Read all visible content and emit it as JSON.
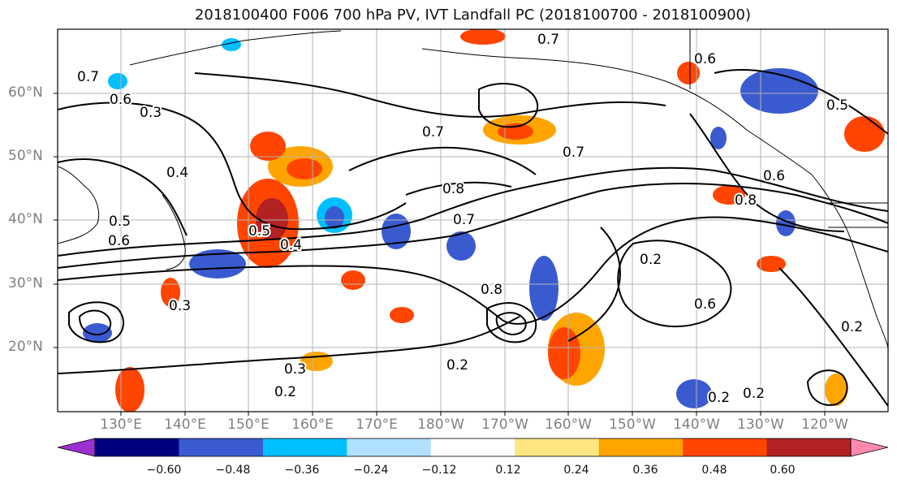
{
  "title": "2018100400 F006 700 hPa PV, IVT Landfall PC (2018100700 - 2018100900)",
  "map": {
    "projection": "PlateCarree",
    "lon_range": "120°E – 110°W",
    "lat_range": "10°N – 70°N",
    "lat_labels": [
      "60°N",
      "50°N",
      "40°N",
      "30°N",
      "20°N"
    ],
    "lon_labels": [
      "130°E",
      "140°E",
      "150°E",
      "160°E",
      "170°E",
      "180°W",
      "170°W",
      "160°W",
      "150°W",
      "140°W",
      "130°W",
      "120°W"
    ],
    "contour_labels": [
      "0.7",
      "0.6",
      "0.3",
      "0.4",
      "0.5",
      "0.8",
      "0.7",
      "0.4",
      "0.6",
      "0.5",
      "0.7",
      "0.8",
      "0.2",
      "0.6",
      "0.3",
      "0.2",
      "0.3",
      "0.2",
      "0.6",
      "0.7",
      "0.2",
      "0.6",
      "0.8",
      "0.5",
      "0.7",
      "0.2",
      "0.2"
    ],
    "contour_color": "#000000",
    "coastline_color": "#000000",
    "gridline_color": "#b3b3b3"
  },
  "colorbar": {
    "tick_labels": [
      "−0.60",
      "−0.48",
      "−0.36",
      "−0.24",
      "−0.12",
      "0.12",
      "0.24",
      "0.36",
      "0.48",
      "0.60"
    ],
    "colors": [
      "#9b30d0",
      "#000080",
      "#3a5bd0",
      "#00bfff",
      "#b0e0ff",
      "#ffffff",
      "#ffe680",
      "#ffa500",
      "#ff4500",
      "#b22222",
      "#ff88b0"
    ]
  }
}
